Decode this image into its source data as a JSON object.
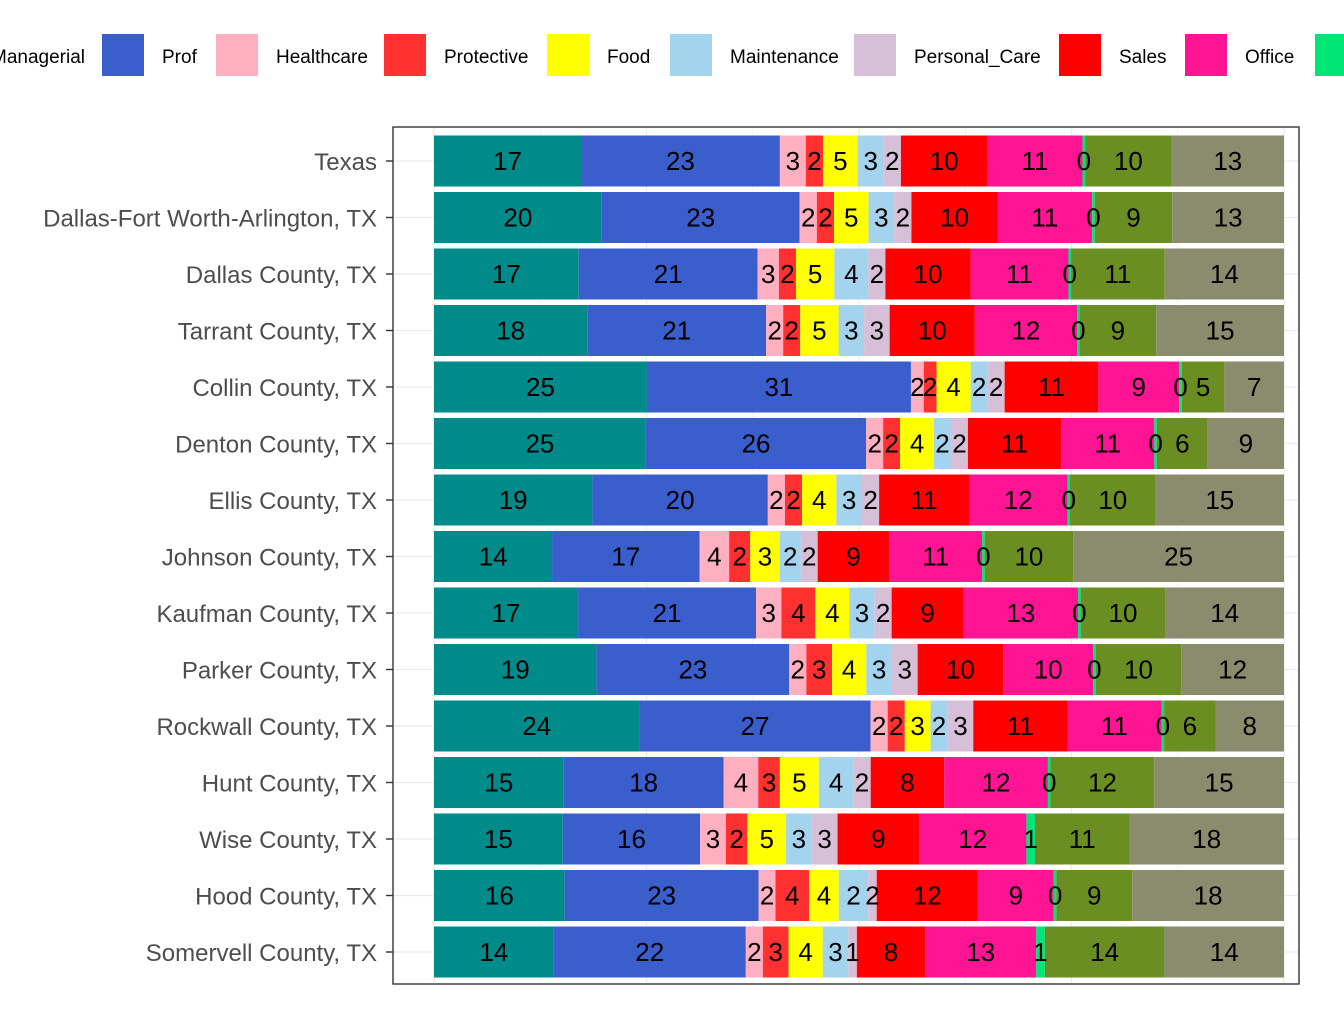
{
  "chart_data": {
    "type": "bar",
    "orientation": "horizontal",
    "stacked": true,
    "xlim": [
      0,
      100
    ],
    "grid": true,
    "legend_position": "top",
    "categories": [
      "Texas",
      "Dallas-Fort Worth-Arlington, TX",
      "Dallas County, TX",
      "Tarrant County, TX",
      "Collin County, TX",
      "Denton County, TX",
      "Ellis County, TX",
      "Johnson County, TX",
      "Kaufman County, TX",
      "Parker County, TX",
      "Rockwall County, TX",
      "Hunt County, TX",
      "Wise County, TX",
      "Hood County, TX",
      "Somervell County, TX"
    ],
    "series": [
      {
        "name": "Managerial",
        "color": "#008B8B",
        "values": [
          17,
          20,
          17,
          18,
          25,
          25,
          19,
          14,
          17,
          19,
          24,
          15,
          15,
          16,
          14
        ]
      },
      {
        "name": "Prof",
        "color": "#3A5FCD",
        "values": [
          23,
          23,
          21,
          21,
          31,
          26,
          20,
          17,
          21,
          23,
          27,
          18,
          16,
          23,
          22
        ]
      },
      {
        "name": "Healthcare",
        "color": "#FFB0C0",
        "values": [
          3,
          2,
          3,
          2,
          2,
          2,
          2,
          4,
          3,
          2,
          2,
          4,
          3,
          2,
          2
        ]
      },
      {
        "name": "Protective",
        "color": "#FF3030",
        "values": [
          2,
          2,
          2,
          2,
          2,
          2,
          2,
          2,
          4,
          3,
          2,
          3,
          2,
          4,
          3
        ]
      },
      {
        "name": "Food",
        "color": "#FFFF00",
        "values": [
          5,
          5,
          5,
          5,
          4,
          4,
          4,
          3,
          4,
          4,
          3,
          5,
          5,
          4,
          4
        ]
      },
      {
        "name": "Maintenance",
        "color": "#A4D3EE",
        "values": [
          3,
          3,
          4,
          3,
          2,
          2,
          3,
          2,
          3,
          3,
          2,
          4,
          3,
          2,
          3
        ]
      },
      {
        "name": "Personal_Care",
        "color": "#D8BFD8",
        "values": [
          2,
          2,
          2,
          3,
          2,
          2,
          2,
          2,
          2,
          3,
          3,
          2,
          3,
          2,
          1
        ]
      },
      {
        "name": "Sales",
        "color": "#FF0000",
        "values": [
          10,
          10,
          10,
          10,
          11,
          11,
          11,
          9,
          9,
          10,
          11,
          8,
          9,
          12,
          8
        ]
      },
      {
        "name": "Office",
        "color": "#FF1493",
        "values": [
          11,
          11,
          11,
          12,
          9,
          11,
          12,
          11,
          13,
          10,
          11,
          12,
          12,
          9,
          13
        ]
      },
      {
        "name": "",
        "color": "#00E676",
        "values": [
          0,
          0,
          0,
          0,
          0,
          0,
          0,
          0,
          0,
          0,
          0,
          0,
          1,
          0,
          1
        ]
      },
      {
        "name": "",
        "color": "#6B8E23",
        "values": [
          10,
          9,
          11,
          9,
          5,
          6,
          10,
          10,
          10,
          10,
          6,
          12,
          11,
          9,
          14
        ]
      },
      {
        "name": "",
        "color": "#8B8B6E",
        "values": [
          13,
          13,
          14,
          15,
          7,
          9,
          15,
          25,
          14,
          12,
          8,
          15,
          18,
          18,
          14
        ]
      }
    ],
    "segment_widths": [
      [
        17,
        23,
        3,
        2,
        4,
        3,
        2,
        10,
        11,
        0.3,
        10,
        13
      ],
      [
        19.5,
        23,
        2,
        2,
        4,
        3,
        2,
        10,
        11,
        0.3,
        9,
        13
      ],
      [
        17,
        21,
        2.5,
        2,
        4.5,
        4,
        2,
        10,
        11.5,
        0.3,
        11,
        14
      ],
      [
        18,
        21,
        2,
        2,
        4.5,
        3,
        3,
        10,
        12,
        0.3,
        9,
        15
      ],
      [
        25,
        31,
        1.5,
        1.5,
        4,
        2,
        2,
        11,
        9.5,
        0.3,
        5,
        7
      ],
      [
        25,
        26,
        2,
        2,
        4,
        2,
        2,
        11,
        11,
        0.3,
        6,
        9
      ],
      [
        18.5,
        20.5,
        2,
        2,
        4,
        3,
        2,
        10.5,
        11.5,
        0.3,
        10,
        15
      ],
      [
        14,
        17.5,
        3.5,
        2.5,
        3.5,
        2.5,
        2,
        8.5,
        11,
        0.3,
        10.5,
        25
      ],
      [
        17,
        21,
        3,
        4,
        4,
        3,
        2,
        8.5,
        13.5,
        0.3,
        10,
        14
      ],
      [
        19,
        22.5,
        2,
        3,
        4,
        3,
        3,
        10,
        10.5,
        0.3,
        10,
        12
      ],
      [
        24,
        27,
        2,
        2,
        3,
        2,
        3,
        11,
        11,
        0.3,
        6,
        8
      ],
      [
        15,
        18.5,
        4,
        2.5,
        4.5,
        4,
        2,
        8.5,
        12,
        0.3,
        12,
        15
      ],
      [
        15,
        16,
        3,
        2.5,
        4.5,
        3,
        3,
        9.5,
        12.5,
        1,
        11,
        18
      ],
      [
        15.5,
        23,
        2,
        4,
        3.5,
        3.5,
        1,
        12,
        9,
        0.3,
        9,
        18
      ],
      [
        14,
        22.5,
        2,
        3,
        4,
        3,
        1,
        8,
        13,
        1,
        14,
        14
      ]
    ]
  }
}
